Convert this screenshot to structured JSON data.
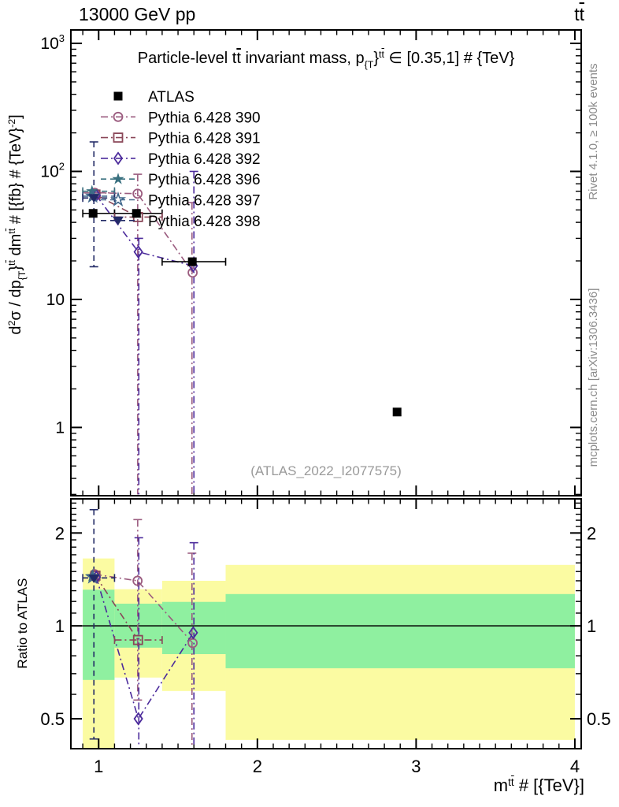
{
  "header": {
    "left": "13000 GeV pp",
    "t1": "t",
    "t2": "t"
  },
  "panel_title": {
    "p1": "Particle-level ",
    "t1": "t",
    "t2": "t",
    "p2": " invariant mass, p",
    "s1": "{T",
    "p3": "}",
    "u1": "t",
    "u2": "t",
    "p4": " ∈ [0.35,1] # {TeV}"
  },
  "y_axis_label": {
    "p1": "d",
    "e1": "2",
    "p2": "σ / dp",
    "s1": "{T",
    "p3": "}",
    "t1": "t",
    "t2": "t",
    "p4": " dm",
    "u1": "t",
    "u2": "t",
    "p5": " # [{fb} # {TeV}",
    "e2": "-2",
    "p6": "]"
  },
  "x_axis_label": {
    "p1": "m",
    "t1": "t",
    "t2": "t",
    "p2": " # [{TeV}]"
  },
  "ratio_axis_label": "Ratio to ATLAS",
  "watermark": "(ATLAS_2022_I2077575)",
  "side_notes": {
    "top": "Rivet 4.1.0, ≥ 100k events",
    "bottom": "mcplots.cern.ch [arXiv:1306.3436]"
  },
  "chart_data": {
    "type": "scatter",
    "title": "Particle-level tt invariant mass, pT in [0.35,1] TeV",
    "xlabel": "m_tt [TeV]",
    "ylabel": "d2sigma/dpT dm [fb/TeV^2]",
    "x_axis": {
      "range": [
        0.825,
        4.04
      ],
      "major_ticks": [
        1,
        2,
        3,
        4
      ],
      "minor_step": 0.1
    },
    "main_y_axis": {
      "scale": "log",
      "range": [
        0.293,
        1273
      ],
      "major_ticks": [
        {
          "v": 1,
          "b": "1",
          "e": ""
        },
        {
          "v": 10,
          "b": "10",
          "e": ""
        },
        {
          "v": 100,
          "b": "10",
          "e": "2"
        },
        {
          "v": 1000,
          "b": "10",
          "e": "3"
        }
      ]
    },
    "ratio_y_axis": {
      "scale": "log",
      "range": [
        0.4,
        2.58
      ],
      "major_ticks": [
        {
          "v": 0.5,
          "l": "0.5"
        },
        {
          "v": 1,
          "l": "1"
        },
        {
          "v": 2,
          "l": "2"
        }
      ],
      "minor_ticks": [
        0.6,
        0.7,
        0.8,
        0.9,
        1.1,
        1.2,
        1.3,
        1.4,
        1.5,
        1.6,
        1.7,
        1.8,
        1.9,
        2.1,
        2.2,
        2.3,
        2.4,
        2.5
      ],
      "ref_line": 1
    },
    "bins": [
      [
        0.9,
        1.1
      ],
      [
        1.1,
        1.4
      ],
      [
        1.4,
        1.8
      ],
      [
        1.8,
        4.0
      ]
    ],
    "band_colors": {
      "yellow": "#fbfba2",
      "green": "#8ff0a0"
    },
    "ratio_bands": [
      {
        "bin": 0,
        "yellow": [
          0.4,
          1.654
        ],
        "green": [
          0.668,
          1.31
        ]
      },
      {
        "bin": 1,
        "yellow": [
          0.68,
          1.315
        ],
        "green": [
          0.85,
          1.18
        ]
      },
      {
        "bin": 2,
        "yellow": [
          0.615,
          1.4
        ],
        "green": [
          0.81,
          1.196
        ]
      },
      {
        "bin": 3,
        "yellow": [
          0.427,
          1.576
        ],
        "green": [
          0.729,
          1.268
        ]
      }
    ],
    "atlas": {
      "id": "atlas",
      "label": "ATLAS",
      "color": "#000000",
      "marker": "square-filled",
      "main_points": [
        [
          0.965,
          47
        ],
        [
          1.238,
          47
        ],
        [
          1.59,
          19.7
        ],
        [
          2.88,
          1.32
        ]
      ]
    },
    "series": [
      {
        "id": "p390",
        "label": "Pythia 6.428 390",
        "color": "#9b5c7f",
        "marker": "circle-open",
        "line": "dashdot",
        "main_points": [
          [
            0.975,
            68
          ],
          [
            1.245,
            67
          ],
          [
            1.592,
            16.2
          ]
        ],
        "ratio_points": [
          [
            0.975,
            1.47
          ],
          [
            1.245,
            1.4
          ],
          [
            1.592,
            0.88
          ]
        ]
      },
      {
        "id": "p391",
        "label": "Pythia 6.428 391",
        "color": "#8a4758",
        "marker": "square-open",
        "line": "dashdot",
        "main_points": [
          [
            0.98,
            66
          ],
          [
            1.248,
            44
          ]
        ],
        "ratio_points": [
          [
            0.98,
            1.455
          ],
          [
            1.248,
            0.9
          ]
        ]
      },
      {
        "id": "p392",
        "label": "Pythia 6.428 392",
        "color": "#4b2a9b",
        "marker": "diamond-open",
        "line": "dashdot",
        "main_points": [
          [
            0.985,
            65
          ],
          [
            1.25,
            23.5
          ],
          [
            1.596,
            18.3
          ]
        ],
        "ratio_points": [
          [
            0.985,
            1.44
          ],
          [
            1.25,
            0.5
          ],
          [
            1.596,
            0.95
          ]
        ]
      },
      {
        "id": "p396",
        "label": "Pythia 6.428 396",
        "color": "#39707f",
        "marker": "star-filled",
        "line": "dash",
        "main_points": [
          [
            0.958,
            70
          ]
        ],
        "ratio_points": [
          [
            0.958,
            1.45
          ]
        ]
      },
      {
        "id": "p397",
        "label": "Pythia 6.428 397",
        "color": "#41688c",
        "marker": "star-open",
        "line": "dash",
        "main_points": [
          [
            0.963,
            64
          ]
        ],
        "ratio_points": [
          [
            0.963,
            1.44
          ]
        ]
      },
      {
        "id": "p398",
        "label": "Pythia 6.428 398",
        "color": "#222a66",
        "marker": "triangle-down-filled",
        "line": "dash",
        "main_points": [
          [
            0.97,
            62
          ]
        ],
        "ratio_points": [
          [
            0.97,
            1.425
          ]
        ]
      }
    ],
    "main_err_bars": [
      {
        "x": 0.97,
        "lo": 18,
        "hi": 170,
        "series": "p398",
        "caps": "both"
      },
      {
        "x": 1.246,
        "lo": 0.3,
        "hi": 95,
        "series": "p390",
        "caps": "top"
      },
      {
        "x": 1.253,
        "lo": 0.3,
        "hi": 30,
        "series": "p392",
        "caps": "top"
      },
      {
        "x": 1.588,
        "lo": 0.3,
        "hi": 57,
        "series": "p390",
        "caps": "top"
      },
      {
        "x": 1.6,
        "lo": 0.3,
        "hi": 100,
        "series": "p392",
        "caps": "top"
      }
    ],
    "main_x_err_bars": [
      {
        "y": 47,
        "xlo": 0.9,
        "xhi": 1.1,
        "series": "atlas"
      },
      {
        "y": 47,
        "xlo": 1.1,
        "xhi": 1.4,
        "series": "atlas"
      },
      {
        "y": 19.7,
        "xlo": 1.4,
        "xhi": 1.8,
        "series": "atlas"
      },
      {
        "y": 68,
        "xlo": 0.9,
        "xhi": 1.1,
        "series": "p390"
      },
      {
        "y": 70,
        "xlo": 0.9,
        "xhi": 1.1,
        "series": "p396"
      },
      {
        "y": 64,
        "xlo": 0.9,
        "xhi": 1.1,
        "series": "p397"
      },
      {
        "y": 62,
        "xlo": 0.9,
        "xhi": 1.1,
        "series": "p398"
      },
      {
        "y": 44,
        "xlo": 1.1,
        "xhi": 1.4,
        "series": "p391"
      }
    ],
    "ratio_err_bars": [
      {
        "x": 0.97,
        "lo": 0.43,
        "hi": 2.38,
        "series": "p398",
        "caps": "both"
      },
      {
        "x": 1.246,
        "lo": 0.575,
        "hi": 2.21,
        "series": "p390",
        "caps": "both"
      },
      {
        "x": 1.253,
        "lo": 0.405,
        "hi": 1.93,
        "series": "p392",
        "caps": "top"
      },
      {
        "x": 1.588,
        "lo": 0.405,
        "hi": 1.72,
        "series": "p390",
        "caps": "top"
      },
      {
        "x": 1.6,
        "lo": 0.405,
        "hi": 1.86,
        "series": "p392",
        "caps": "top"
      }
    ],
    "ratio_x_err_bars": [
      {
        "y": 1.43,
        "xlo": 0.9,
        "xhi": 1.1,
        "series": "p398"
      },
      {
        "y": 0.9,
        "xlo": 1.1,
        "xhi": 1.4,
        "series": "p391"
      }
    ]
  }
}
